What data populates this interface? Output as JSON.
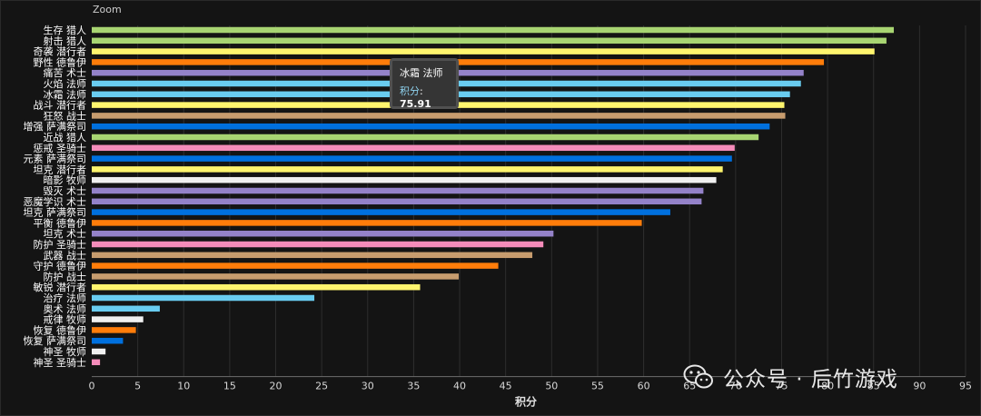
{
  "zoom_label": "Zoom",
  "tooltip": {
    "title": "冰霜 法师",
    "label": "积分",
    "separator": ": ",
    "value": "75.91"
  },
  "watermark": {
    "text": "公众号 · 后竹游戏",
    "icon": "wechat-icon"
  },
  "chart_data": {
    "type": "bar",
    "orientation": "horizontal",
    "xlabel": "积分",
    "ylabel": "",
    "xlim": [
      0,
      95
    ],
    "xticks": [
      0,
      5,
      10,
      15,
      20,
      25,
      30,
      35,
      40,
      45,
      50,
      55,
      60,
      65,
      70,
      75,
      80,
      85,
      90,
      95
    ],
    "grid": {
      "vertical": true,
      "horizontal": false
    },
    "legend": "none",
    "categories": [
      "生存 猎人",
      "射击 猎人",
      "奇袭 潜行者",
      "野性 德鲁伊",
      "痛苦 术士",
      "火焰 法师",
      "冰霜 法师",
      "战斗 潜行者",
      "狂怒 战士",
      "增强 萨满祭司",
      "近战 猎人",
      "惩戒 圣骑士",
      "元素 萨满祭司",
      "坦克 潜行者",
      "暗影 牧师",
      "毁灭 术士",
      "恶魔学识 术士",
      "坦克 萨满祭司",
      "平衡 德鲁伊",
      "坦克 术士",
      "防护 圣骑士",
      "武器 战士",
      "守护 德鲁伊",
      "防护 战士",
      "敏锐 潜行者",
      "治疗 法师",
      "奥术 法师",
      "戒律 牧师",
      "恢复 德鲁伊",
      "恢复 萨满祭司",
      "神圣 牧师",
      "神圣 圣骑士"
    ],
    "values": [
      87.2,
      86.4,
      85.1,
      79.6,
      77.4,
      77.1,
      75.91,
      75.3,
      75.4,
      73.7,
      72.5,
      69.9,
      69.6,
      68.6,
      67.9,
      66.5,
      66.3,
      62.9,
      59.8,
      50.2,
      49.1,
      47.9,
      44.2,
      39.9,
      35.7,
      24.2,
      7.4,
      5.6,
      4.8,
      3.4,
      1.5,
      0.9
    ],
    "colors": [
      "#a8d572",
      "#a8d572",
      "#fff56e",
      "#ff7d0a",
      "#9482c9",
      "#69ccf0",
      "#69ccf0",
      "#fff56e",
      "#c79c6e",
      "#0070de",
      "#a8d572",
      "#f58cba",
      "#0070de",
      "#fff56e",
      "#f0f0f0",
      "#9482c9",
      "#9482c9",
      "#0070de",
      "#ff7d0a",
      "#9482c9",
      "#f58cba",
      "#c79c6e",
      "#ff7d0a",
      "#c79c6e",
      "#fff56e",
      "#69ccf0",
      "#69ccf0",
      "#f0f0f0",
      "#ff7d0a",
      "#0070de",
      "#f0f0f0",
      "#f58cba"
    ]
  }
}
